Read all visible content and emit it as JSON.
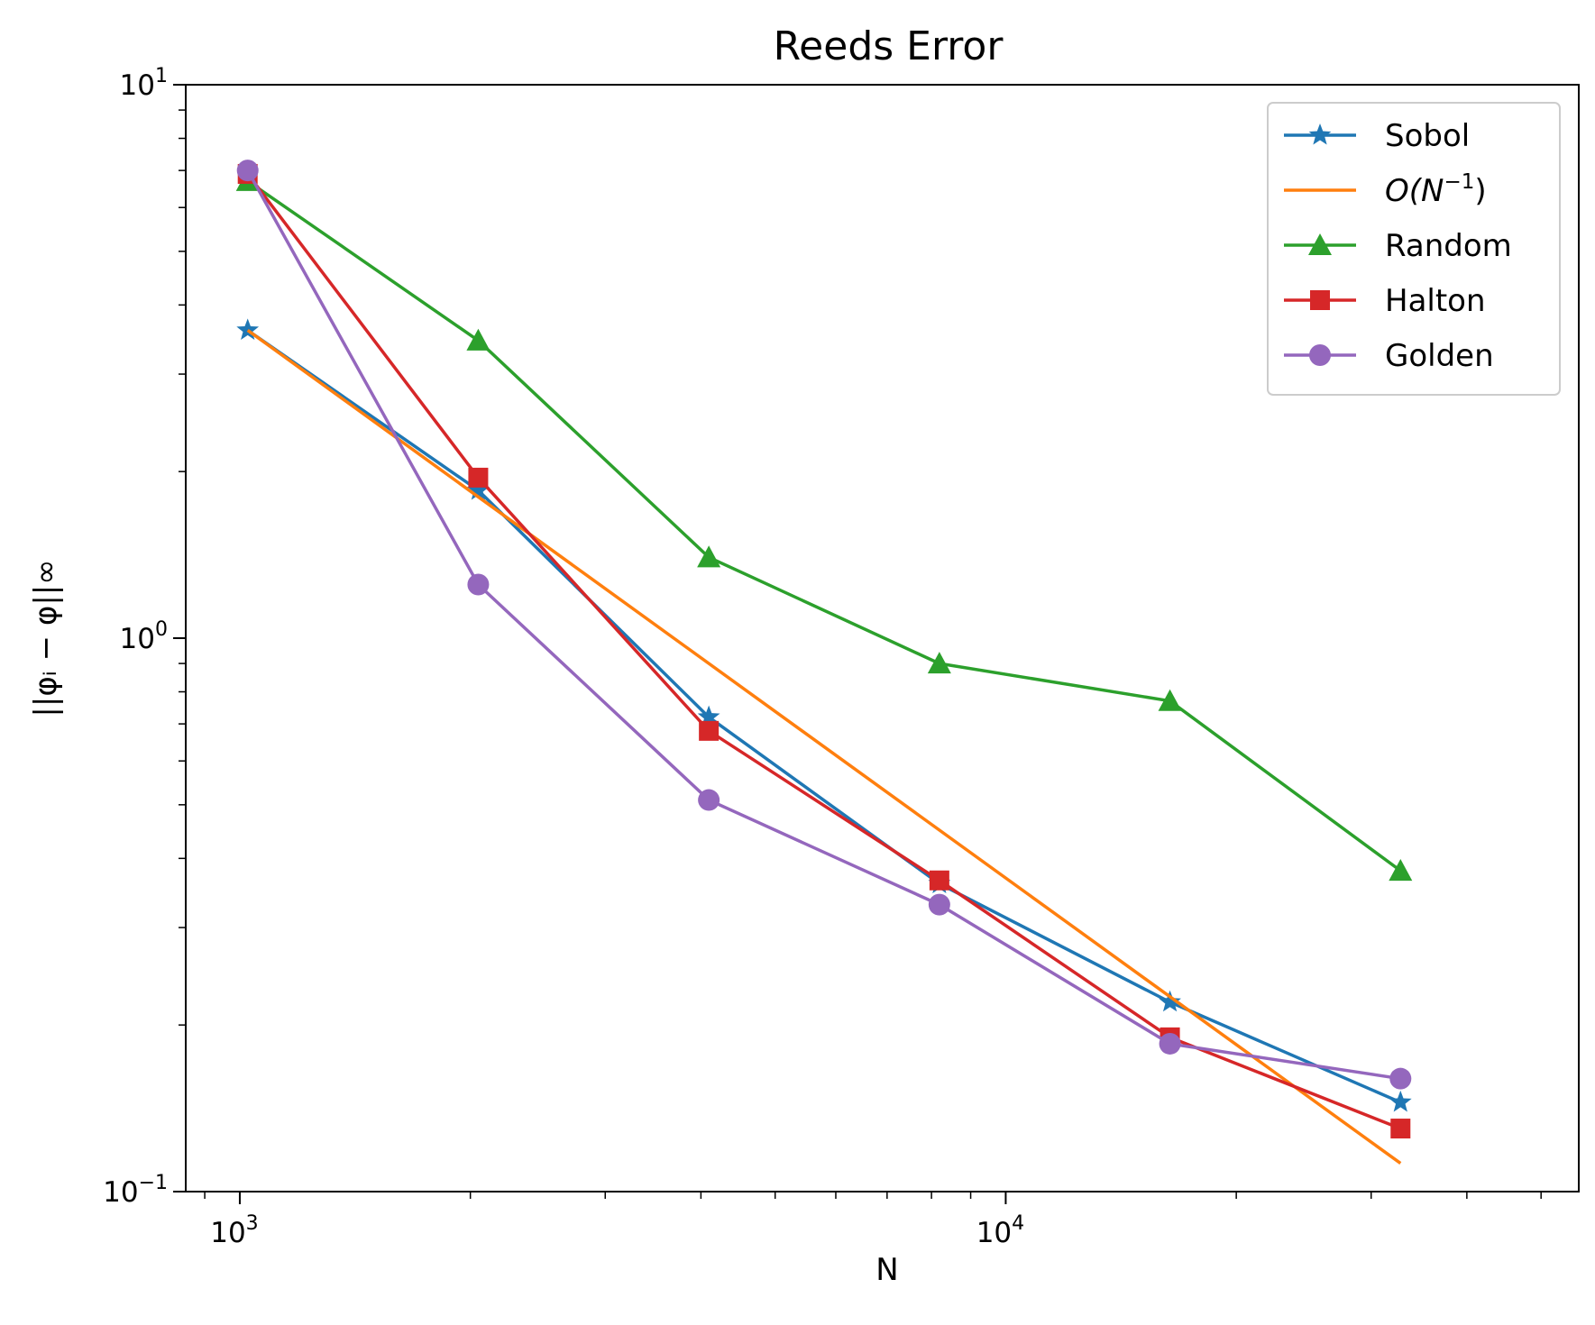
{
  "chart_data": {
    "type": "line",
    "title": "Reeds Error",
    "xlabel": "N",
    "ylabel": "||φᵢ − φ||∞",
    "xscale": "log",
    "yscale": "log",
    "xlim": [
      850,
      56000
    ],
    "ylim": [
      0.1,
      10
    ],
    "xticks": [
      {
        "value": 1000,
        "base": "10",
        "exp": "3"
      },
      {
        "value": 10000,
        "base": "10",
        "exp": "4"
      }
    ],
    "yticks": [
      {
        "value": 0.1,
        "base": "10",
        "exp": "−1"
      },
      {
        "value": 1,
        "base": "10",
        "exp": "0"
      },
      {
        "value": 10,
        "base": "10",
        "exp": "1"
      }
    ],
    "grid": false,
    "legend_position": "top-right",
    "series": [
      {
        "name": "Sobol",
        "color": "#1f77b4",
        "marker": "star",
        "x": [
          1024,
          2048,
          4096,
          8192,
          16384,
          32768
        ],
        "y": [
          3.6,
          1.85,
          0.72,
          0.36,
          0.22,
          0.145
        ]
      },
      {
        "name_base": "O(N",
        "name_sup": "−1",
        "name_end": ")",
        "color": "#ff7f0e",
        "marker": "none",
        "x": [
          1024,
          32768
        ],
        "y": [
          3.6,
          0.1125
        ]
      },
      {
        "name": "Random",
        "color": "#2ca02c",
        "marker": "triangle",
        "x": [
          1024,
          2048,
          4096,
          8192,
          16384,
          32768
        ],
        "y": [
          6.7,
          3.45,
          1.4,
          0.9,
          0.77,
          0.38
        ]
      },
      {
        "name": "Halton",
        "color": "#d62728",
        "marker": "square",
        "x": [
          1024,
          2048,
          4096,
          8192,
          16384,
          32768
        ],
        "y": [
          6.9,
          1.95,
          0.68,
          0.365,
          0.19,
          0.13
        ]
      },
      {
        "name": "Golden",
        "color": "#9467bd",
        "marker": "circle",
        "x": [
          1024,
          2048,
          4096,
          8192,
          16384,
          32768
        ],
        "y": [
          7.0,
          1.25,
          0.51,
          0.33,
          0.185,
          0.16
        ]
      }
    ]
  }
}
